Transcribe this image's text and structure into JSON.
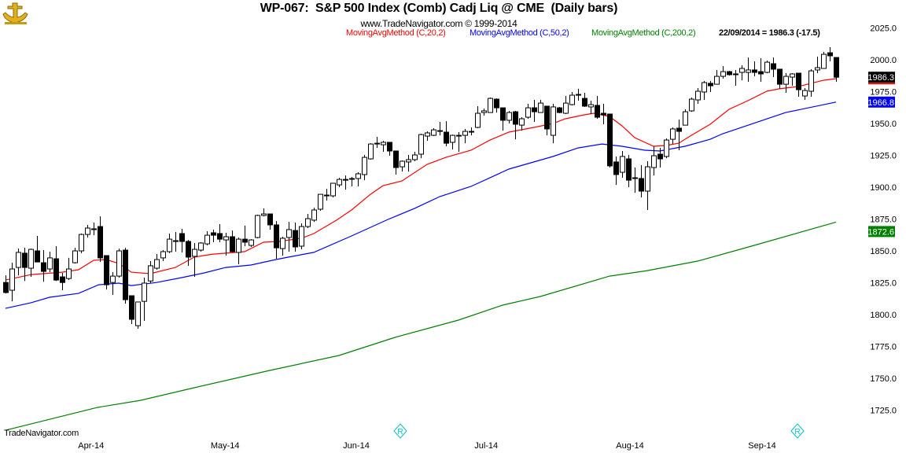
{
  "header": {
    "title": "WP-067:  S&P 500 Index (Comb) Cadj Liq @ CME  (Daily bars)",
    "subtitle": "www.TradeNavigator.com © 1999-2014",
    "logo_text": "TradeNavigator"
  },
  "legend": {
    "ma20": "MovingAvgMethod (C,20,2)",
    "ma50": "MovingAvgMethod (C,50,2)",
    "ma200": "MovingAvgMethod (C,200,2)",
    "last": "22/09/2014 = 1986.3 (-17.5)"
  },
  "footer": "TradeNavigator.com",
  "markers": [
    {
      "icon": "r-diamond-icon"
    },
    {
      "icon": "r-diamond-icon"
    }
  ],
  "colors": {
    "ma20": "#ff0000",
    "ma50": "#0000ff",
    "ma200": "#008000",
    "up": "#ffffff",
    "down": "#000000"
  },
  "chart_data": {
    "type": "candlestick",
    "title": "WP-067:  S&P 500 Index (Comb) Cadj Liq @ CME  (Daily bars)",
    "ylim": [
      1712,
      2035
    ],
    "yticks": [
      "2025.0",
      "2000.0",
      "1975.0",
      "1950.0",
      "1925.0",
      "1900.0",
      "1875.0",
      "1850.0",
      "1825.0",
      "1800.0",
      "1775.0",
      "1750.0",
      "1725.0"
    ],
    "xticks": [
      {
        "label": "Apr-14",
        "bar": 14.6
      },
      {
        "label": "May-14",
        "bar": 35.9
      },
      {
        "label": "Jun-14",
        "bar": 56.75
      },
      {
        "label": "Jul-14",
        "bar": 77.4
      },
      {
        "label": "Aug-14",
        "bar": 100.25
      },
      {
        "label": "Sep-14",
        "bar": 121.25
      }
    ],
    "candles_ohlc": [
      [
        1825.2,
        1830.8,
        1816.6,
        1817.3
      ],
      [
        1819.1,
        1840.7,
        1810.4,
        1835.8
      ],
      [
        1837.0,
        1851.8,
        1830.8,
        1848.8
      ],
      [
        1848.2,
        1852.5,
        1826.4,
        1837.0
      ],
      [
        1836.4,
        1851.8,
        1829.6,
        1851.2
      ],
      [
        1850.0,
        1861.7,
        1841.3,
        1841.3
      ],
      [
        1840.7,
        1850.6,
        1825.8,
        1833.9
      ],
      [
        1835.8,
        1849.4,
        1833.3,
        1844.5
      ],
      [
        1843.8,
        1853.7,
        1826.4,
        1827.1
      ],
      [
        1829.6,
        1832.7,
        1819.1,
        1825.2
      ],
      [
        1828.3,
        1844.5,
        1827.1,
        1835.8
      ],
      [
        1840.7,
        1852.4,
        1840.1,
        1850.0
      ],
      [
        1850.0,
        1863.6,
        1848.2,
        1862.9
      ],
      [
        1862.9,
        1870.4,
        1860.5,
        1867.9
      ],
      [
        1867.3,
        1872.2,
        1862.3,
        1867.3
      ],
      [
        1869.1,
        1877.1,
        1841.3,
        1844.5
      ],
      [
        1846.3,
        1846.3,
        1819.7,
        1823.4
      ],
      [
        1825.2,
        1833.3,
        1815.4,
        1830.2
      ],
      [
        1830.2,
        1851.8,
        1829.0,
        1850.0
      ],
      [
        1850.6,
        1852.4,
        1808.6,
        1811.7
      ],
      [
        1814.8,
        1814.8,
        1792.6,
        1796.3
      ],
      [
        1791.3,
        1809.9,
        1788.9,
        1809.9
      ],
      [
        1810.4,
        1829.0,
        1795.1,
        1824.7
      ],
      [
        1826.4,
        1842.0,
        1824.7,
        1838.3
      ],
      [
        1836.4,
        1847.5,
        1835.2,
        1843.2
      ],
      [
        1844.5,
        1850.6,
        1842.0,
        1849.4
      ],
      [
        1849.4,
        1863.6,
        1848.2,
        1859.2
      ],
      [
        1858.0,
        1864.8,
        1849.4,
        1858.0
      ],
      [
        1863.6,
        1867.3,
        1848.8,
        1857.4
      ],
      [
        1857.4,
        1858.6,
        1838.3,
        1845.1
      ],
      [
        1845.7,
        1856.2,
        1829.6,
        1851.2
      ],
      [
        1850.6,
        1856.8,
        1849.4,
        1856.2
      ],
      [
        1855.5,
        1865.4,
        1854.3,
        1862.3
      ],
      [
        1864.2,
        1866.7,
        1856.8,
        1862.3
      ],
      [
        1863.6,
        1871.0,
        1856.8,
        1859.2
      ],
      [
        1858.6,
        1864.2,
        1846.3,
        1861.1
      ],
      [
        1861.1,
        1866.0,
        1848.8,
        1849.4
      ],
      [
        1848.8,
        1860.5,
        1839.5,
        1859.2
      ],
      [
        1859.2,
        1869.8,
        1853.7,
        1856.8
      ],
      [
        1854.3,
        1859.2,
        1853.1,
        1858.6
      ],
      [
        1860.5,
        1878.4,
        1859.9,
        1877.8
      ],
      [
        1877.8,
        1883.3,
        1877.1,
        1879.0
      ],
      [
        1879.0,
        1879.0,
        1866.7,
        1870.4
      ],
      [
        1870.4,
        1873.4,
        1843.8,
        1852.4
      ],
      [
        1851.8,
        1861.1,
        1846.3,
        1859.9
      ],
      [
        1860.5,
        1872.8,
        1849.4,
        1866.7
      ],
      [
        1866.0,
        1872.2,
        1849.4,
        1853.1
      ],
      [
        1853.7,
        1871.6,
        1851.2,
        1869.1
      ],
      [
        1869.1,
        1879.0,
        1867.9,
        1875.3
      ],
      [
        1874.1,
        1883.9,
        1872.8,
        1882.1
      ],
      [
        1882.7,
        1894.4,
        1881.5,
        1894.4
      ],
      [
        1893.8,
        1898.7,
        1889.5,
        1893.8
      ],
      [
        1893.2,
        1903.1,
        1892.0,
        1903.1
      ],
      [
        1901.8,
        1907.4,
        1900.0,
        1906.1
      ],
      [
        1906.1,
        1909.2,
        1898.1,
        1906.1
      ],
      [
        1906.8,
        1908.0,
        1900.6,
        1906.8
      ],
      [
        1906.8,
        1911.7,
        1900.6,
        1910.5
      ],
      [
        1909.9,
        1925.3,
        1905.5,
        1923.4
      ],
      [
        1922.2,
        1934.5,
        1921.6,
        1933.9
      ],
      [
        1934.5,
        1939.5,
        1930.9,
        1934.5
      ],
      [
        1933.3,
        1936.4,
        1927.8,
        1935.2
      ],
      [
        1935.2,
        1935.2,
        1924.7,
        1928.4
      ],
      [
        1928.4,
        1928.4,
        1909.9,
        1915.4
      ],
      [
        1916.0,
        1921.0,
        1912.3,
        1920.4
      ],
      [
        1919.8,
        1925.3,
        1912.3,
        1921.6
      ],
      [
        1921.6,
        1927.8,
        1920.4,
        1925.3
      ],
      [
        1925.9,
        1942.0,
        1922.8,
        1941.3
      ],
      [
        1940.1,
        1943.8,
        1936.4,
        1942.6
      ],
      [
        1940.7,
        1946.3,
        1940.1,
        1945.0
      ],
      [
        1944.4,
        1951.2,
        1940.7,
        1944.4
      ],
      [
        1943.2,
        1951.8,
        1932.1,
        1934.5
      ],
      [
        1935.2,
        1941.3,
        1929.6,
        1940.7
      ],
      [
        1940.7,
        1943.2,
        1927.8,
        1940.7
      ],
      [
        1940.7,
        1945.7,
        1934.5,
        1943.8
      ],
      [
        1943.8,
        1946.9,
        1940.7,
        1943.8
      ],
      [
        1946.9,
        1963.6,
        1946.3,
        1958.0
      ],
      [
        1958.6,
        1961.7,
        1956.2,
        1959.9
      ],
      [
        1958.6,
        1970.4,
        1958.6,
        1969.7
      ],
      [
        1969.1,
        1969.7,
        1958.6,
        1962.3
      ],
      [
        1962.3,
        1962.3,
        1944.4,
        1952.5
      ],
      [
        1952.5,
        1959.9,
        1950.0,
        1958.6
      ],
      [
        1959.2,
        1959.9,
        1937.6,
        1949.4
      ],
      [
        1948.7,
        1954.9,
        1944.4,
        1953.7
      ],
      [
        1954.9,
        1965.4,
        1953.7,
        1962.3
      ],
      [
        1962.3,
        1968.5,
        1951.2,
        1959.2
      ],
      [
        1958.6,
        1968.5,
        1958.6,
        1966.0
      ],
      [
        1963.6,
        1963.6,
        1940.7,
        1945.7
      ],
      [
        1940.7,
        1965.4,
        1934.5,
        1963.0
      ],
      [
        1962.3,
        1963.0,
        1958.0,
        1958.6
      ],
      [
        1958.0,
        1971.6,
        1957.4,
        1966.0
      ],
      [
        1964.8,
        1974.7,
        1964.2,
        1972.2
      ],
      [
        1972.8,
        1977.2,
        1967.9,
        1972.8
      ],
      [
        1969.7,
        1974.1,
        1963.0,
        1963.6
      ],
      [
        1963.0,
        1967.9,
        1957.4,
        1964.8
      ],
      [
        1964.2,
        1971.6,
        1953.7,
        1954.9
      ],
      [
        1958.0,
        1965.4,
        1949.4,
        1956.8
      ],
      [
        1957.4,
        1957.4,
        1915.4,
        1916.7
      ],
      [
        1919.8,
        1924.1,
        1901.8,
        1909.9
      ],
      [
        1911.7,
        1928.4,
        1907.4,
        1924.1
      ],
      [
        1922.2,
        1925.3,
        1900.0,
        1905.5
      ],
      [
        1907.4,
        1915.4,
        1895.6,
        1907.4
      ],
      [
        1906.8,
        1917.3,
        1892.0,
        1896.9
      ],
      [
        1896.9,
        1920.4,
        1882.1,
        1916.0
      ],
      [
        1915.4,
        1932.1,
        1909.2,
        1924.7
      ],
      [
        1925.9,
        1930.9,
        1915.4,
        1922.2
      ],
      [
        1924.1,
        1938.3,
        1922.8,
        1937.0
      ],
      [
        1937.6,
        1946.9,
        1933.9,
        1945.7
      ],
      [
        1946.3,
        1953.1,
        1929.0,
        1943.8
      ],
      [
        1948.7,
        1961.1,
        1948.7,
        1959.2
      ],
      [
        1959.9,
        1970.4,
        1959.2,
        1969.1
      ],
      [
        1968.5,
        1977.8,
        1965.4,
        1975.3
      ],
      [
        1974.7,
        1983.3,
        1968.5,
        1982.1
      ],
      [
        1981.5,
        1983.3,
        1974.7,
        1979.6
      ],
      [
        1980.8,
        1992.0,
        1980.8,
        1987.0
      ],
      [
        1987.0,
        1995.0,
        1985.2,
        1990.7
      ],
      [
        1990.7,
        1991.3,
        1987.6,
        1988.3
      ],
      [
        1988.9,
        1992.0,
        1979.6,
        1988.3
      ],
      [
        1990.1,
        1995.7,
        1983.9,
        1993.2
      ],
      [
        1990.1,
        2001.8,
        1982.7,
        1992.0
      ],
      [
        1992.0,
        1998.8,
        1987.0,
        1990.1
      ],
      [
        1990.7,
        2001.2,
        1982.7,
        1988.9
      ],
      [
        1990.1,
        1999.4,
        1989.5,
        1998.1
      ],
      [
        1996.9,
        2001.8,
        1986.4,
        1992.6
      ],
      [
        1992.6,
        1992.6,
        1977.2,
        1980.8
      ],
      [
        1980.8,
        1989.5,
        1974.1,
        1987.0
      ],
      [
        1986.4,
        1989.5,
        1979.6,
        1988.9
      ],
      [
        1989.5,
        1989.5,
        1971.0,
        1976.5
      ],
      [
        1971.6,
        1977.8,
        1968.5,
        1975.9
      ],
      [
        1975.3,
        1992.6,
        1971.0,
        1991.3
      ],
      [
        1992.0,
        2002.5,
        1989.5,
        1993.8
      ],
      [
        1993.2,
        2006.2,
        1993.2,
        2004.3
      ],
      [
        2005.5,
        2009.9,
        1998.8,
        2003.1
      ],
      [
        2001.8,
        2001.8,
        1982.7,
        1986.3
      ]
    ],
    "series": [
      {
        "name": "MovingAvgMethod (C,20,2)",
        "color": "#ff0000",
        "points": [
          [
            1,
            1827.1
          ],
          [
            5.1,
            1831.4
          ],
          [
            10,
            1833.3
          ],
          [
            12.6,
            1835.2
          ],
          [
            15,
            1842.6
          ],
          [
            17,
            1843.2
          ],
          [
            19,
            1840.1
          ],
          [
            21,
            1833.3
          ],
          [
            24,
            1832.1
          ],
          [
            28,
            1837.0
          ],
          [
            31,
            1845.1
          ],
          [
            34,
            1847.5
          ],
          [
            39,
            1849.4
          ],
          [
            42,
            1856.8
          ],
          [
            44.5,
            1857.4
          ],
          [
            48,
            1859.9
          ],
          [
            50,
            1863.6
          ],
          [
            53.6,
            1874.1
          ],
          [
            56,
            1882.1
          ],
          [
            59,
            1894.4
          ],
          [
            61,
            1901.2
          ],
          [
            64,
            1904.9
          ],
          [
            68,
            1917.9
          ],
          [
            71,
            1923.4
          ],
          [
            75,
            1929.0
          ],
          [
            78,
            1937.0
          ],
          [
            81,
            1943.2
          ],
          [
            85,
            1946.9
          ],
          [
            88,
            1950.0
          ],
          [
            90,
            1953.7
          ],
          [
            93,
            1956.8
          ],
          [
            94.5,
            1958.0
          ],
          [
            97,
            1955.5
          ],
          [
            99,
            1948.1
          ],
          [
            101,
            1938.9
          ],
          [
            104,
            1932.1
          ],
          [
            106,
            1932.7
          ],
          [
            108,
            1934.5
          ],
          [
            110,
            1940.7
          ],
          [
            113,
            1949.4
          ],
          [
            116,
            1961.1
          ],
          [
            119,
            1967.9
          ],
          [
            122,
            1975.3
          ],
          [
            124,
            1977.2
          ],
          [
            127,
            1979.0
          ],
          [
            131,
            1983.9
          ],
          [
            133,
            1985.2
          ]
        ]
      },
      {
        "name": "MovingAvgMethod (C,50,2)",
        "color": "#0000ff",
        "last_value": "1966.8",
        "points": [
          [
            1,
            1804.9
          ],
          [
            5,
            1809.2
          ],
          [
            8,
            1813.6
          ],
          [
            12.6,
            1816.6
          ],
          [
            15.8,
            1823.4
          ],
          [
            19,
            1824.7
          ],
          [
            21,
            1822.8
          ],
          [
            25,
            1825.2
          ],
          [
            29,
            1829.0
          ],
          [
            32.6,
            1832.7
          ],
          [
            36,
            1837.0
          ],
          [
            40,
            1838.9
          ],
          [
            44,
            1843.2
          ],
          [
            46,
            1845.1
          ],
          [
            50,
            1848.8
          ],
          [
            56,
            1861.7
          ],
          [
            61.8,
            1874.7
          ],
          [
            66,
            1883.3
          ],
          [
            70,
            1892.6
          ],
          [
            75,
            1900.6
          ],
          [
            81,
            1914.2
          ],
          [
            88,
            1924.1
          ],
          [
            92,
            1930.8
          ],
          [
            95.8,
            1933.9
          ],
          [
            99,
            1932.1
          ],
          [
            102.6,
            1929.0
          ],
          [
            105,
            1928.4
          ],
          [
            109,
            1932.1
          ],
          [
            113,
            1937.6
          ],
          [
            115,
            1942.0
          ],
          [
            125,
            1958.6
          ],
          [
            133,
            1966.8
          ]
        ]
      },
      {
        "name": "MovingAvgMethod (C,200,2)",
        "color": "#008000",
        "last_value": "1872.6",
        "points": [
          [
            1,
            1709.2
          ],
          [
            15.6,
            1727.1
          ],
          [
            22.5,
            1732.7
          ],
          [
            31,
            1742.6
          ],
          [
            43,
            1756.2
          ],
          [
            54,
            1767.9
          ],
          [
            62.9,
            1782.1
          ],
          [
            73,
            1795.7
          ],
          [
            80,
            1807.4
          ],
          [
            86,
            1814.2
          ],
          [
            97,
            1830.2
          ],
          [
            103,
            1834.5
          ],
          [
            111,
            1842.0
          ],
          [
            120,
            1854.3
          ],
          [
            133,
            1872.6
          ]
        ]
      }
    ],
    "last_close": "1986.3",
    "xlabel": "",
    "ylabel": "",
    "grid": false
  }
}
